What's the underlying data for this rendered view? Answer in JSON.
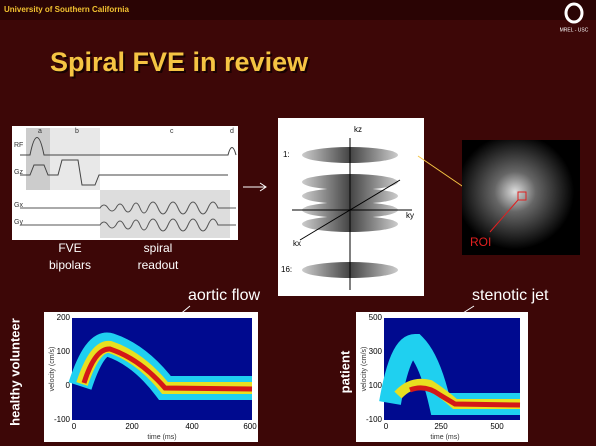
{
  "header": {
    "institution": "University of Southern California",
    "logo_text": "MREL - USC"
  },
  "title": "Spiral FVE in review",
  "sequence_diagram": {
    "row_labels": [
      "RF",
      "Gz",
      "Gx",
      "Gy"
    ],
    "segment_labels": [
      "a",
      "b",
      "c",
      "d"
    ],
    "captions": [
      [
        "FVE",
        "bipolars"
      ],
      [
        "spiral",
        "readout"
      ]
    ]
  },
  "kspace_diagram": {
    "axis_labels": [
      "kz",
      "ky",
      "kx"
    ],
    "row_labels": [
      "1:",
      "16:"
    ]
  },
  "roi_image": {
    "label": "ROI"
  },
  "plots": [
    {
      "annotation": "aortic flow",
      "subject": "healthy volunteer",
      "y_label": "velocity (cm/s)",
      "x_label": "time (ms)",
      "yticks": [
        "200",
        "100",
        "0",
        "-100"
      ],
      "xticks": [
        "0",
        "200",
        "400",
        "600"
      ]
    },
    {
      "annotation": "stenotic jet",
      "subject": "patient",
      "y_label": "velocity (cm/s)",
      "x_label": "time (ms)",
      "yticks": [
        "500",
        "300",
        "100",
        "-100"
      ],
      "xticks": [
        "0",
        "250",
        "500"
      ]
    }
  ]
}
